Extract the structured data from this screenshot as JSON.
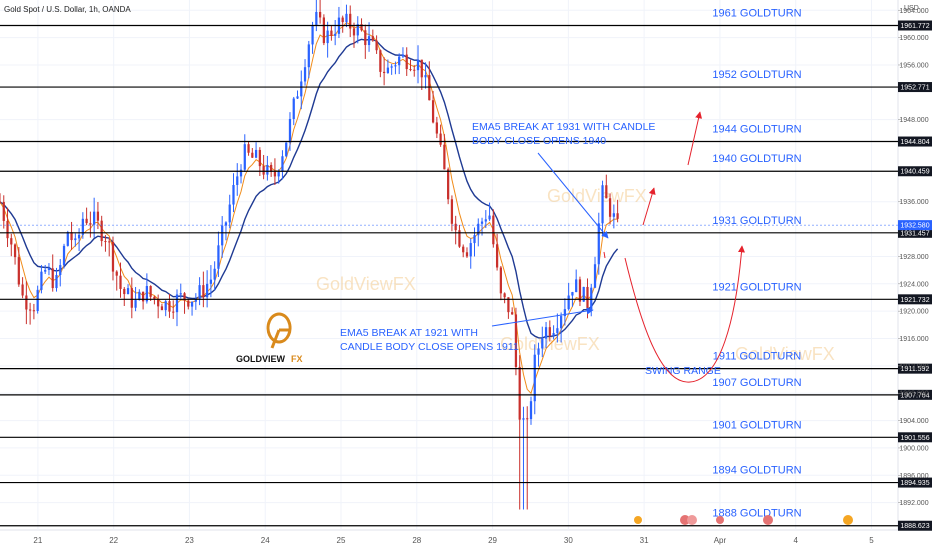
{
  "header": {
    "symbol_title": "Gold Spot / U.S. Dollar, 1h, OANDA",
    "currency": "USD"
  },
  "logo": {
    "text_main": "GOLDVIEW",
    "text_fx": "FX"
  },
  "watermark_text": "GoldViewFX",
  "colors": {
    "level_line": "#000000",
    "label": "#2962ff",
    "candle_up": "#2962ff",
    "candle_down": "#c9302c",
    "ema5": "#f08c1a",
    "ema_blue": "#1f3a93",
    "ma_green": "#7bc67b",
    "arrow_red": "#e5222c",
    "arrow_blue": "#2962ff",
    "price_tag_black": "#131722",
    "price_tag_blue": "#2962ff"
  },
  "annotations": {
    "ema_1931_line1": "EMA5 BREAK AT 1931 WITH CANDLE",
    "ema_1931_line2": "BODY CLOSE OPENS 1940",
    "ema_1921_line1": "EMA5 BREAK AT 1921 WITH",
    "ema_1921_line2": "CANDLE BODY CLOSE OPENS  1911",
    "swing_range": "SWING RANGE"
  },
  "chart_data": {
    "type": "candlestick",
    "title": "Gold Spot / U.S. Dollar, 1h, OANDA",
    "y_axis": {
      "unit": "USD",
      "ylim": [
        1888.0,
        1965.5
      ],
      "ticks": [
        1892.0,
        1896.0,
        1900.0,
        1904.0,
        1908.0,
        1912.0,
        1916.0,
        1920.0,
        1924.0,
        1928.0,
        1936.0,
        1948.0,
        1956.0,
        1960.0,
        1964.0
      ],
      "tick_labels": [
        "1892.000",
        "1896.000",
        "1900.000",
        "1904.000",
        "1908.000",
        "1912.000",
        "1916.000",
        "1920.000",
        "1924.000",
        "1928.000",
        "1936.000",
        "1948.000",
        "1956.000",
        "1960.000",
        "1964.000"
      ]
    },
    "x_axis": {
      "tick_labels": [
        "21",
        "22",
        "23",
        "24",
        "25",
        "28",
        "29",
        "30",
        "31",
        "Apr",
        "4",
        "5"
      ],
      "tick_index": [
        0.5,
        1.5,
        2.5,
        3.5,
        4.5,
        5.5,
        6.5,
        7.5,
        8.5,
        9.5,
        10.5,
        11.5
      ],
      "ticks_note": "trading days"
    },
    "levels": [
      {
        "price": 1961.772,
        "label": "1961 GOLDTURN",
        "tag": "1961.772"
      },
      {
        "price": 1952.771,
        "label": "1952 GOLDTURN",
        "tag": "1952.771"
      },
      {
        "price": 1944.804,
        "label": "1944 GOLDTURN",
        "tag": "1944.804"
      },
      {
        "price": 1940.459,
        "label": "1940 GOLDTURN",
        "tag": "1940.459"
      },
      {
        "price": 1931.457,
        "label": "1931 GOLDTURN",
        "tag": "1931.457"
      },
      {
        "price": 1921.732,
        "label": "1921 GOLDTURN",
        "tag": "1921.732"
      },
      {
        "price": 1911.592,
        "label": "1911 GOLDTURN",
        "tag": "1911.592"
      },
      {
        "price": 1907.764,
        "label": "1907 GOLDTURN",
        "tag": "1907.764"
      },
      {
        "price": 1901.556,
        "label": "1901 GOLDTURN",
        "tag": "1901.556"
      },
      {
        "price": 1894.935,
        "label": "1894 GOLDTURN",
        "tag": "1894.935"
      },
      {
        "price": 1888.623,
        "label": "1888 GOLDTURN",
        "tag": "1888.623"
      }
    ],
    "current_price": {
      "price": 1932.58,
      "tag": "1932.580"
    },
    "close_path": [
      [
        0.0,
        1936
      ],
      [
        0.15,
        1930
      ],
      [
        0.3,
        1922
      ],
      [
        0.45,
        1921
      ],
      [
        0.6,
        1926
      ],
      [
        0.75,
        1924
      ],
      [
        0.9,
        1932
      ],
      [
        1.0,
        1929
      ],
      [
        1.1,
        1934
      ],
      [
        1.25,
        1933
      ],
      [
        1.4,
        1931
      ],
      [
        1.5,
        1927
      ],
      [
        1.6,
        1923
      ],
      [
        1.7,
        1922
      ],
      [
        1.8,
        1921
      ],
      [
        1.9,
        1923
      ],
      [
        2.0,
        1922
      ],
      [
        2.2,
        1921
      ],
      [
        2.4,
        1922
      ],
      [
        2.6,
        1922
      ],
      [
        2.8,
        1925
      ],
      [
        3.0,
        1934
      ],
      [
        3.2,
        1943
      ],
      [
        3.4,
        1942
      ],
      [
        3.6,
        1939
      ],
      [
        3.8,
        1946
      ],
      [
        4.0,
        1956
      ],
      [
        4.15,
        1963
      ],
      [
        4.3,
        1960
      ],
      [
        4.45,
        1962
      ],
      [
        4.6,
        1962
      ],
      [
        4.75,
        1961
      ],
      [
        4.9,
        1959
      ],
      [
        5.0,
        1956
      ],
      [
        5.1,
        1955
      ],
      [
        5.25,
        1957
      ],
      [
        5.4,
        1957
      ],
      [
        5.55,
        1956
      ],
      [
        5.7,
        1949
      ],
      [
        5.85,
        1941
      ],
      [
        6.0,
        1932
      ],
      [
        6.15,
        1929
      ],
      [
        6.3,
        1932
      ],
      [
        6.45,
        1935
      ],
      [
        6.6,
        1922
      ],
      [
        6.75,
        1920
      ],
      [
        6.85,
        1906
      ],
      [
        6.95,
        1902
      ],
      [
        7.05,
        1912
      ],
      [
        7.15,
        1917
      ],
      [
        7.3,
        1918
      ],
      [
        7.45,
        1921
      ],
      [
        7.55,
        1924
      ],
      [
        7.65,
        1923
      ],
      [
        7.75,
        1921
      ],
      [
        7.85,
        1928
      ],
      [
        7.95,
        1937
      ],
      [
        8.05,
        1935
      ],
      [
        8.15,
        1932
      ]
    ],
    "series": [
      {
        "name": "EMA5",
        "color": "#f08c1a"
      },
      {
        "name": "EMA blue",
        "color": "#1f3a93"
      },
      {
        "name": "MA green",
        "color": "#7bc67b"
      }
    ]
  }
}
